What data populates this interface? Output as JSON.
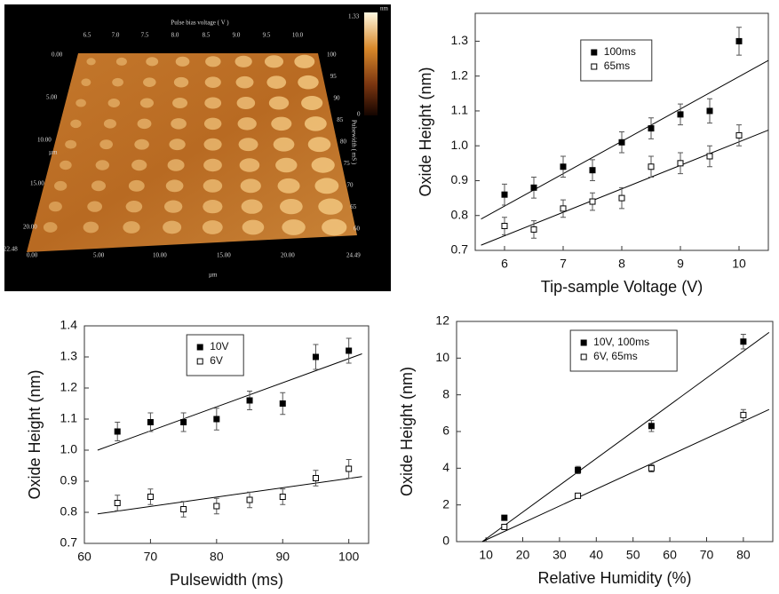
{
  "image": {
    "top_axis_title": "Pulse bias voltage ( V )",
    "top_ticks": [
      "6.5",
      "7.0",
      "7.5",
      "8.0",
      "8.5",
      "9.0",
      "9.5",
      "10.0"
    ],
    "colorbar_max": "1.33",
    "colorbar_unit": "nm",
    "colorbar_min": "0",
    "right_axis_title": "Pulsewidth ( mS )",
    "right_ticks": [
      "100",
      "95",
      "90",
      "85",
      "80",
      "75",
      "70",
      "65",
      "60"
    ],
    "left_ticks": [
      "0.00",
      "5.00",
      "10.00",
      "15.00",
      "20.00",
      "22.48"
    ],
    "bottom_ticks": [
      "0.00",
      "5.00",
      "10.00",
      "15.00",
      "20.00",
      "24.49"
    ],
    "unit": "µm"
  },
  "chart_data": [
    {
      "type": "scatter",
      "x_label": "Tip-sample Voltage (V)",
      "y_label": "Oxide Height (nm)",
      "xlim": [
        5.5,
        10.5
      ],
      "xticks": [
        6,
        7,
        8,
        9,
        10
      ],
      "ylim": [
        0.7,
        1.38
      ],
      "yticks": [
        0.7,
        0.8,
        0.9,
        {
          "value": 1,
          "label": "1.0"
        },
        1.1,
        1.2,
        1.3
      ],
      "legend": "upper-left",
      "x": [
        6,
        6.5,
        7,
        7.5,
        8,
        8.5,
        9,
        9.5,
        10
      ],
      "series": [
        {
          "name": "100ms",
          "marker": "filled-square",
          "color": "#000000",
          "values": [
            0.86,
            0.88,
            0.94,
            0.93,
            1.01,
            1.05,
            1.09,
            1.1,
            1.3
          ],
          "errors": [
            0.03,
            0.03,
            0.03,
            0.03,
            0.03,
            0.03,
            0.03,
            0.035,
            0.04
          ],
          "fit": {
            "x": [
              5.6,
              10.5
            ],
            "values": [
              0.79,
              1.245
            ]
          }
        },
        {
          "name": "65ms",
          "marker": "open-square",
          "color": "#000000",
          "values": [
            0.77,
            0.76,
            0.82,
            0.84,
            0.85,
            0.94,
            0.95,
            0.97,
            1.03
          ],
          "errors": [
            0.025,
            0.025,
            0.025,
            0.025,
            0.03,
            0.03,
            0.03,
            0.03,
            0.03
          ],
          "fit": {
            "x": [
              5.6,
              10.5
            ],
            "values": [
              0.715,
              1.045
            ]
          }
        }
      ]
    },
    {
      "type": "scatter",
      "x_label": "Pulsewidth (ms)",
      "y_label": "Oxide Height (nm)",
      "xlim": [
        60,
        103
      ],
      "xticks": [
        60,
        70,
        80,
        90,
        100
      ],
      "ylim": [
        0.7,
        1.4
      ],
      "yticks": [
        0.7,
        0.8,
        0.9,
        {
          "value": 1,
          "label": "1.0"
        },
        1.1,
        1.2,
        1.3,
        1.4
      ],
      "legend": "upper-left",
      "x": [
        65,
        70,
        75,
        80,
        85,
        90,
        95,
        100
      ],
      "series": [
        {
          "name": "10V",
          "marker": "filled-square",
          "color": "#000000",
          "values": [
            1.06,
            1.09,
            1.09,
            1.1,
            1.16,
            1.15,
            1.3,
            1.32
          ],
          "errors": [
            0.03,
            0.03,
            0.03,
            0.035,
            0.03,
            0.035,
            0.04,
            0.04
          ],
          "fit": {
            "x": [
              62,
              102
            ],
            "values": [
              1.0,
              1.31
            ]
          }
        },
        {
          "name": "6V",
          "marker": "open-square",
          "color": "#000000",
          "values": [
            0.83,
            0.85,
            0.81,
            0.82,
            0.84,
            0.85,
            0.91,
            0.94
          ],
          "errors": [
            0.025,
            0.025,
            0.025,
            0.025,
            0.025,
            0.025,
            0.025,
            0.03
          ],
          "fit": {
            "x": [
              62,
              102
            ],
            "values": [
              0.795,
              0.915
            ]
          }
        }
      ]
    },
    {
      "type": "scatter",
      "x_label": "Relative Humidity (%)",
      "y_label": "Oxide Height (nm)",
      "xlim": [
        2,
        88
      ],
      "xticks": [
        10,
        20,
        30,
        40,
        50,
        60,
        70,
        80
      ],
      "ylim": [
        0,
        12
      ],
      "yticks": [
        0,
        2,
        4,
        6,
        8,
        10,
        12
      ],
      "legend": "upper-left",
      "x": [
        15,
        35,
        55,
        80
      ],
      "series": [
        {
          "name": "10V, 100ms",
          "marker": "filled-square",
          "color": "#000000",
          "values": [
            1.3,
            3.9,
            6.3,
            10.9
          ],
          "errors": [
            0.1,
            0.2,
            0.3,
            0.4
          ],
          "fit": {
            "x": [
              9,
              87
            ],
            "values": [
              0,
              11.4
            ]
          }
        },
        {
          "name": "6V, 65ms",
          "marker": "open-square",
          "color": "#000000",
          "values": [
            0.8,
            2.5,
            4.0,
            6.9
          ],
          "errors": [
            0.1,
            0.1,
            0.2,
            0.3
          ],
          "fit": {
            "x": [
              9,
              87
            ],
            "values": [
              0,
              7.2
            ]
          }
        }
      ]
    }
  ]
}
